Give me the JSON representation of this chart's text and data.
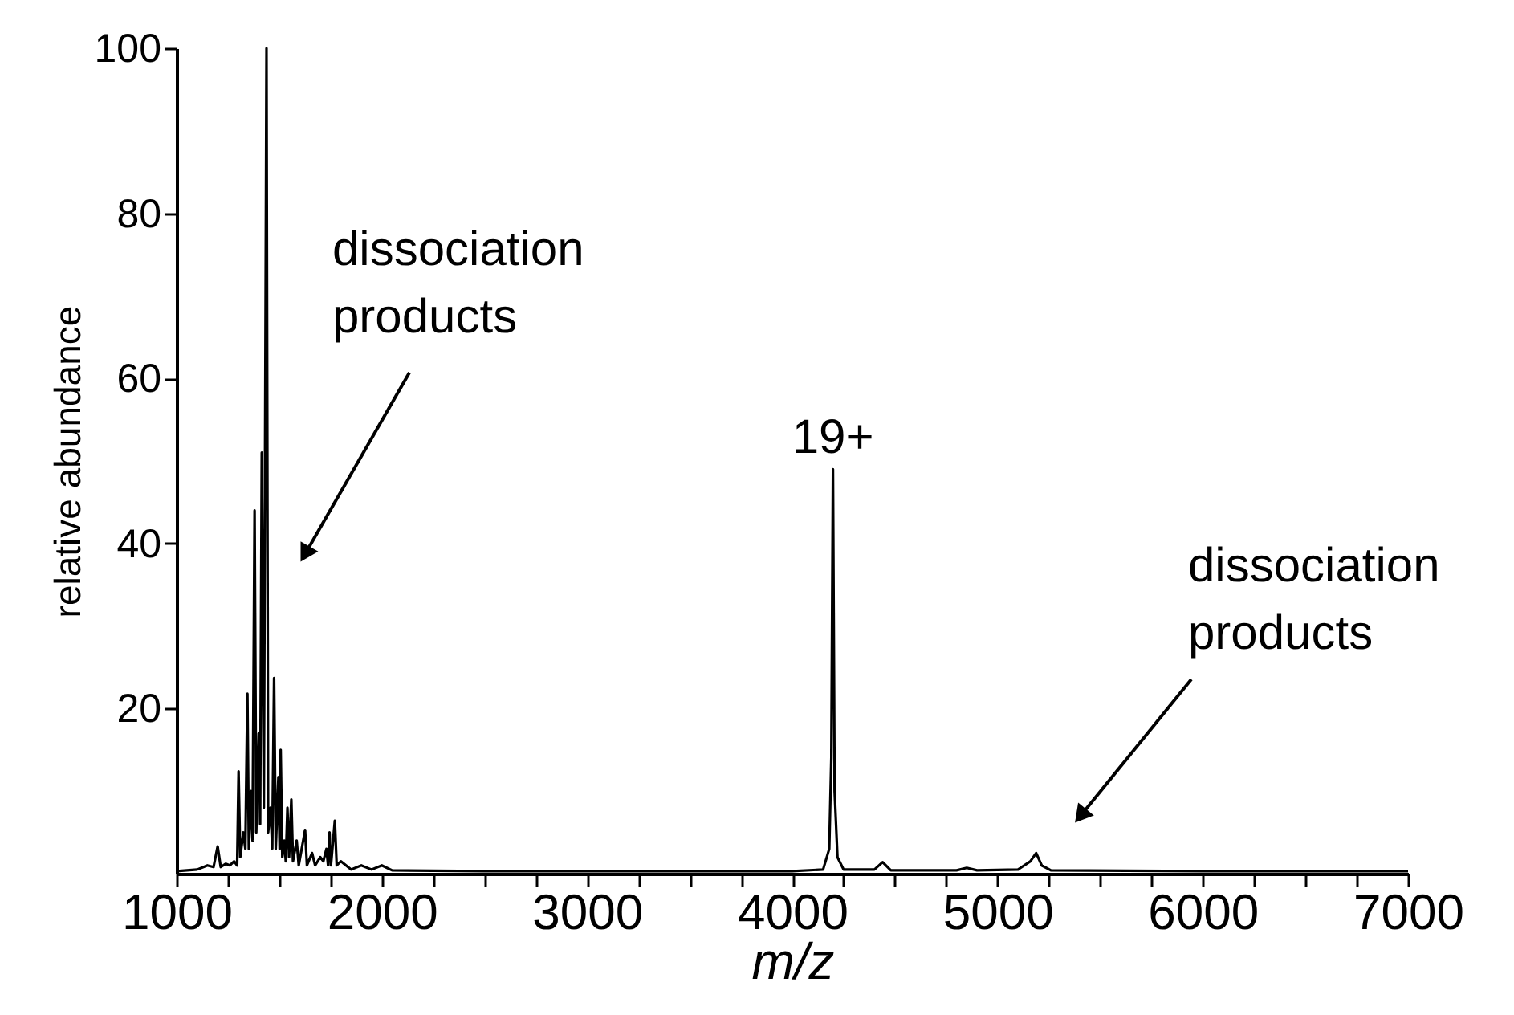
{
  "chart_data": {
    "type": "line",
    "xlabel": "m/z",
    "ylabel": "relative abundance",
    "x": [
      1000,
      1100,
      1150,
      1180,
      1200,
      1215,
      1240,
      1260,
      1280,
      1295,
      1302,
      1310,
      1325,
      1335,
      1345,
      1352,
      1362,
      1370,
      1380,
      1388,
      1400,
      1407,
      1415,
      1425,
      1438,
      1446,
      1458,
      1466,
      1475,
      1483,
      1496,
      1502,
      1507,
      1515,
      1525,
      1532,
      1540,
      1548,
      1559,
      1567,
      1585,
      1595,
      1626,
      1635,
      1660,
      1675,
      1700,
      1715,
      1730,
      1738,
      1745,
      1752,
      1771,
      1780,
      1800,
      1850,
      1900,
      1950,
      2000,
      2050,
      2500,
      3000,
      3500,
      4000,
      4150,
      4180,
      4190,
      4198,
      4206,
      4220,
      4250,
      4400,
      4440,
      4480,
      4800,
      4850,
      4900,
      5100,
      5160,
      5188,
      5215,
      5260,
      6000,
      7000
    ],
    "series": [
      {
        "color": "#000000",
        "values": [
          0.3,
          0.5,
          1,
          0.8,
          3.3,
          0.8,
          1.2,
          1,
          1.5,
          1,
          12.4,
          2,
          5,
          3,
          21.8,
          3,
          10,
          4,
          44,
          5,
          17,
          6,
          51,
          8,
          100,
          5,
          8,
          3,
          23.7,
          3,
          11.7,
          3,
          15,
          2,
          4,
          1.5,
          8,
          2,
          9,
          1.5,
          4,
          1,
          5.3,
          1,
          2.5,
          1,
          2,
          1.5,
          3,
          1,
          5,
          1,
          6.4,
          1,
          1.5,
          0.5,
          1,
          0.5,
          1,
          0.4,
          0.3,
          0.3,
          0.3,
          0.3,
          0.5,
          3,
          14,
          49,
          10,
          2,
          0.5,
          0.5,
          1.4,
          0.4,
          0.4,
          0.7,
          0.4,
          0.5,
          1.5,
          2.5,
          1,
          0.4,
          0.3,
          0.3
        ]
      }
    ],
    "xlim": [
      1000,
      7000
    ],
    "xticks": [
      1000,
      {
        "value": 1250,
        "label": null
      },
      {
        "value": 1500,
        "label": null
      },
      {
        "value": 1750,
        "label": null
      },
      2000,
      {
        "value": 2250,
        "label": null
      },
      {
        "value": 2500,
        "label": null
      },
      {
        "value": 2750,
        "label": null
      },
      3000,
      {
        "value": 3250,
        "label": null
      },
      {
        "value": 3500,
        "label": null
      },
      {
        "value": 3750,
        "label": null
      },
      4000,
      {
        "value": 4250,
        "label": null
      },
      {
        "value": 4500,
        "label": null
      },
      {
        "value": 4750,
        "label": null
      },
      5000,
      {
        "value": 5250,
        "label": null
      },
      {
        "value": 5500,
        "label": null
      },
      {
        "value": 5750,
        "label": null
      },
      6000,
      {
        "value": 6250,
        "label": null
      },
      {
        "value": 6500,
        "label": null
      },
      {
        "value": 6750,
        "label": null
      },
      7000
    ],
    "ylim": [
      0,
      100
    ],
    "yticks": [
      20,
      40,
      60,
      80,
      100
    ],
    "grid": false,
    "legend": false,
    "marker": "none",
    "line_style": "solid",
    "annotations": [
      "dissociation products",
      {
        "text": "19+",
        "x": 4198,
        "y": 49
      },
      "dissociation products"
    ]
  }
}
